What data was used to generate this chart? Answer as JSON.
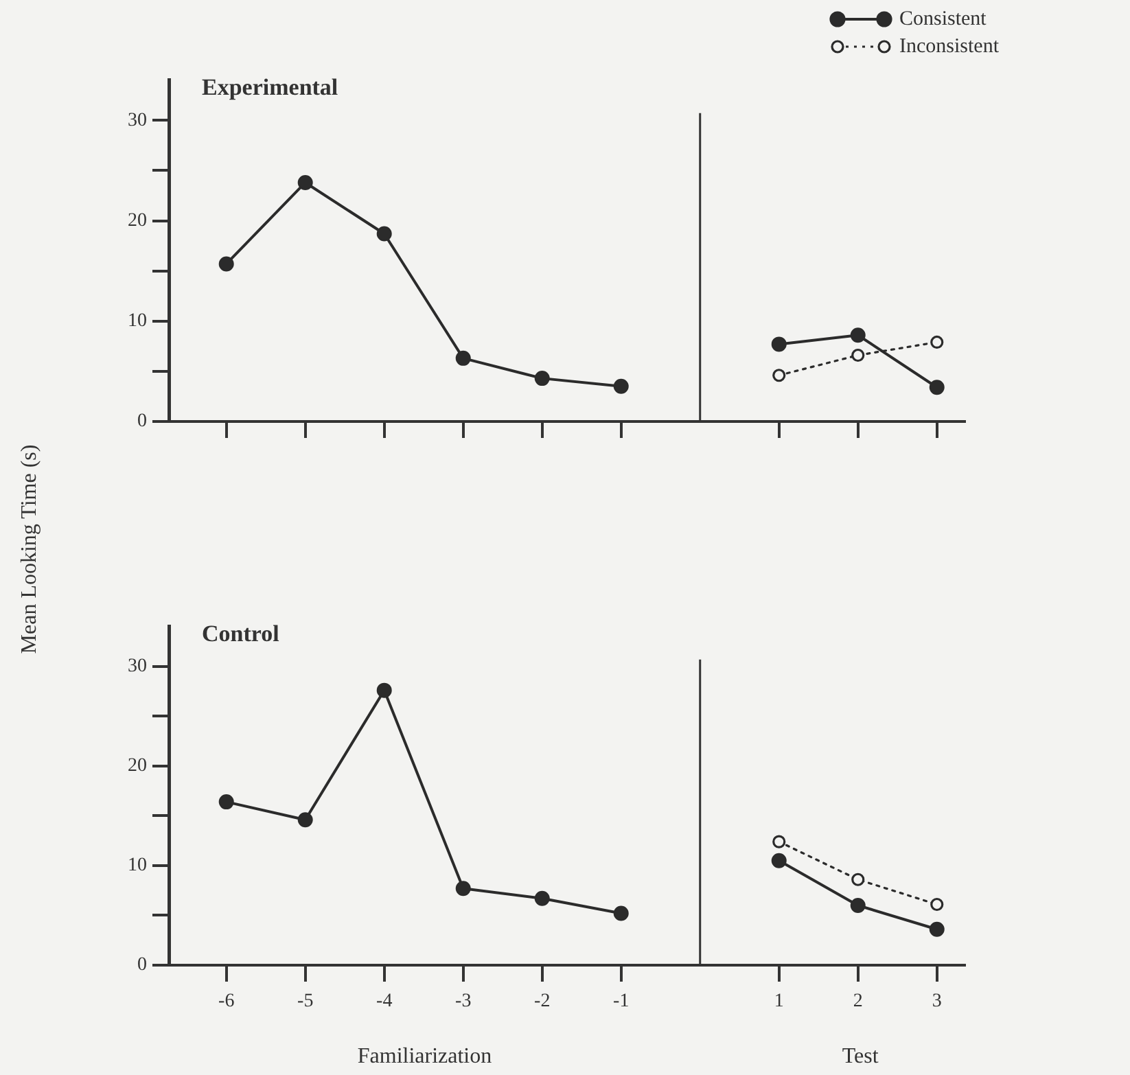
{
  "chart_data": [
    {
      "type": "line",
      "title": "Experimental",
      "ylabel": "Mean Looking Time (s)",
      "categories": [
        "-6",
        "-5",
        "-4",
        "-3",
        "-2",
        "-1",
        null,
        "1",
        "2",
        "3"
      ],
      "marker": "circle",
      "tick_labels": "y",
      "ylim": [
        0,
        34
      ],
      "yticks": [
        0,
        {
          "value": 5,
          "label": null
        },
        10,
        {
          "value": 15,
          "label": null
        },
        20,
        {
          "value": 25,
          "label": null
        },
        30
      ],
      "legend": "top right",
      "ref_lines": [
        {
          "axis": "x"
        }
      ],
      "series": [
        {
          "color": "#2b2b2b",
          "values": [
            15.7,
            23.8,
            18.7,
            6.3,
            4.3,
            3.5,
            null,
            null,
            null,
            null
          ],
          "line_style": "solid"
        },
        {
          "name": "Consistent",
          "color": "#2b2b2b",
          "values": [
            null,
            null,
            null,
            null,
            null,
            null,
            null,
            7.7,
            8.6,
            3.4
          ],
          "line_style": "solid"
        },
        {
          "name": "Inconsistent",
          "color": "#2b2b2b",
          "values": [
            null,
            null,
            null,
            null,
            null,
            null,
            null,
            4.6,
            6.6,
            7.9
          ],
          "line_style": "dotted"
        }
      ]
    },
    {
      "type": "line",
      "title": "Control",
      "categories": [
        "-6",
        "-5",
        "-4",
        "-3",
        "-2",
        "-1",
        null,
        "1",
        "2",
        "3"
      ],
      "marker": "circle",
      "ylim": [
        0,
        34
      ],
      "yticks": [
        0,
        {
          "value": 5,
          "label": null
        },
        10,
        {
          "value": 15,
          "label": null
        },
        20,
        {
          "value": 25,
          "label": null
        },
        30
      ],
      "ref_lines": [
        {
          "axis": "x"
        }
      ],
      "annotations": [
        "Familiarization",
        "Test"
      ],
      "series": [
        {
          "color": "#2b2b2b",
          "values": [
            16.4,
            14.6,
            27.6,
            7.7,
            6.7,
            5.2,
            null,
            null,
            null,
            null
          ],
          "line_style": "solid"
        },
        {
          "color": "#2b2b2b",
          "values": [
            null,
            null,
            null,
            null,
            null,
            null,
            null,
            10.5,
            6.0,
            3.6
          ],
          "line_style": "solid"
        },
        {
          "color": "#2b2b2b",
          "values": [
            null,
            null,
            null,
            null,
            null,
            null,
            null,
            12.4,
            8.6,
            6.1
          ],
          "line_style": "dotted"
        }
      ]
    }
  ]
}
